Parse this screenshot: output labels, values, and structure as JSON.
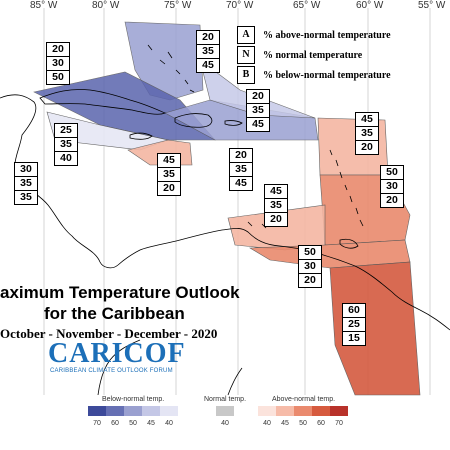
{
  "longitude_labels": [
    "85° W",
    "80° W",
    "75° W",
    "70° W",
    "65° W",
    "60° W",
    "55° W"
  ],
  "key": {
    "a": {
      "letter": "A",
      "text": "% above-normal temperature"
    },
    "n": {
      "letter": "N",
      "text": "% normal temperature"
    },
    "b": {
      "letter": "B",
      "text": "% below-normal temperature"
    }
  },
  "title_line1": "aximum Temperature Outlook",
  "title_line2": "for the Caribbean",
  "period": "October - November - December - 2020",
  "logo": {
    "name": "CARICOF",
    "subtitle": "CARIBBEAN CLIMATE OUTLOOK FORUM"
  },
  "zones": [
    {
      "a": "20",
      "n": "30",
      "b": "50"
    },
    {
      "a": "20",
      "n": "35",
      "b": "45"
    },
    {
      "a": "25",
      "n": "35",
      "b": "40"
    },
    {
      "a": "30",
      "n": "35",
      "b": "35"
    },
    {
      "a": "20",
      "n": "35",
      "b": "45"
    },
    {
      "a": "45",
      "n": "35",
      "b": "20"
    },
    {
      "a": "20",
      "n": "35",
      "b": "45"
    },
    {
      "a": "45",
      "n": "35",
      "b": "20"
    },
    {
      "a": "45",
      "n": "35",
      "b": "20"
    },
    {
      "a": "50",
      "n": "30",
      "b": "20"
    },
    {
      "a": "50",
      "n": "30",
      "b": "20"
    },
    {
      "a": "60",
      "n": "25",
      "b": "15"
    }
  ],
  "colorbar": {
    "below_label": "Below-normal temp.",
    "normal_label": "Normal temp.",
    "above_label": "Above-normal temp.",
    "below_ticks": [
      "70",
      "60",
      "50",
      "45",
      "40"
    ],
    "normal_ticks": [
      "40"
    ],
    "above_ticks": [
      "40",
      "45",
      "50",
      "60",
      "70"
    ],
    "below_colors": [
      "#3d4a9a",
      "#6670b4",
      "#9aa0d0",
      "#c4c7e6",
      "#e4e5f4"
    ],
    "normal_color": "#c8c8c8",
    "above_colors": [
      "#fbe3dc",
      "#f6bba8",
      "#ea8a6e",
      "#d65a3e",
      "#b8322a"
    ]
  },
  "colors": {
    "bn_strong": "#5a64ad",
    "bn_mid": "#9aa0d2",
    "bn_light": "#c6c9e8",
    "bn_vlight": "#e6e7f5",
    "an_light": "#f4b6a2",
    "an_mid": "#e98a6d",
    "an_strong": "#d45a40",
    "an_vstrong": "#c8493a"
  }
}
